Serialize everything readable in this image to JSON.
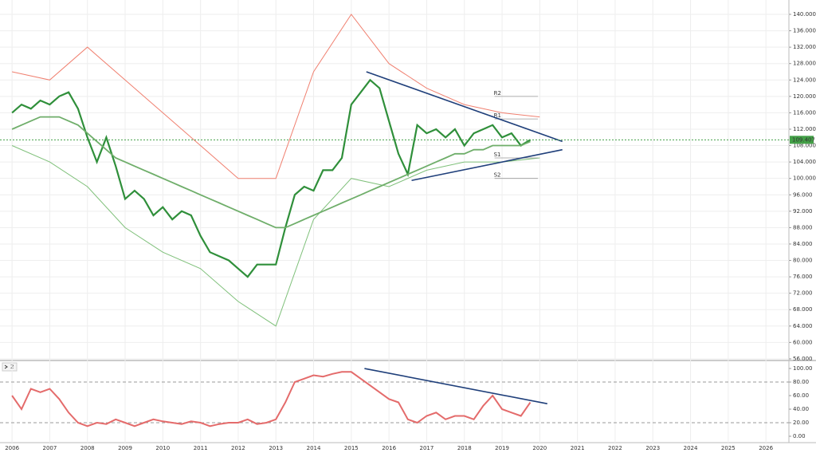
{
  "chart_data": [
    {
      "type": "line",
      "xlim": [
        2005.68,
        2026.61
      ],
      "ylim": [
        55.6,
        143.5
      ],
      "yticks": [
        {
          "value": 56,
          "label": "56.000"
        },
        {
          "value": 60,
          "label": "60.000"
        },
        {
          "value": 64,
          "label": "64.000"
        },
        {
          "value": 68,
          "label": "68.000"
        },
        {
          "value": 72,
          "label": "72.000"
        },
        {
          "value": 76,
          "label": "76.000"
        },
        {
          "value": 80,
          "label": "80.000"
        },
        {
          "value": 84,
          "label": "84.000"
        },
        {
          "value": 88,
          "label": "88.000"
        },
        {
          "value": 92,
          "label": "92.000"
        },
        {
          "value": 96,
          "label": "96.000"
        },
        {
          "value": 100,
          "label": "100.000"
        },
        {
          "value": 104,
          "label": "104.000"
        },
        {
          "value": 108,
          "label": "108.000"
        },
        {
          "value": 112,
          "label": "112.000"
        },
        {
          "value": 116,
          "label": "116.000"
        },
        {
          "value": 120,
          "label": "120.000"
        },
        {
          "value": 124,
          "label": "124.000"
        },
        {
          "value": 128,
          "label": "128.000"
        },
        {
          "value": 132,
          "label": "132.000"
        },
        {
          "value": 136,
          "label": "136.000"
        },
        {
          "value": 140,
          "label": "140.000"
        }
      ],
      "grid": true,
      "x": [
        2006,
        2006.25,
        2006.5,
        2006.75,
        2007,
        2007.25,
        2007.5,
        2007.75,
        2008,
        2008.25,
        2008.5,
        2008.75,
        2009,
        2009.25,
        2009.5,
        2009.75,
        2010,
        2010.25,
        2010.5,
        2010.75,
        2011,
        2011.25,
        2011.5,
        2011.75,
        2012,
        2012.25,
        2012.5,
        2012.75,
        2013,
        2013.25,
        2013.5,
        2013.75,
        2014,
        2014.25,
        2014.5,
        2014.75,
        2015,
        2015.25,
        2015.5,
        2015.75,
        2016,
        2016.25,
        2016.5,
        2016.75,
        2017,
        2017.25,
        2017.5,
        2017.75,
        2018,
        2018.25,
        2018.5,
        2018.75,
        2019,
        2019.25,
        2019.5,
        2019.75
      ],
      "series": [
        {
          "color": "#2f8f3a",
          "width": 2.2,
          "values": [
            116,
            118,
            117,
            119,
            118,
            120,
            121,
            117,
            110,
            104,
            110,
            103,
            95,
            97,
            95,
            91,
            93,
            90,
            92,
            91,
            86,
            82,
            81,
            80,
            78,
            76,
            79,
            79,
            79,
            88,
            96,
            98,
            97,
            102,
            102,
            105,
            118,
            121,
            124,
            122,
            114,
            106,
            101,
            113,
            111,
            112,
            110,
            112,
            108,
            111,
            112,
            113,
            110,
            111,
            108,
            109.4
          ]
        },
        {
          "color": "#6fae6a",
          "width": 1.8,
          "values": [
            112,
            113,
            114,
            115,
            115,
            115,
            114,
            113,
            111,
            109,
            107,
            105,
            104,
            103,
            102,
            101,
            100,
            99,
            98,
            97,
            96,
            95,
            94,
            93,
            92,
            91,
            90,
            89,
            88,
            88,
            89,
            90,
            91,
            92,
            93,
            94,
            95,
            96,
            97,
            98,
            99,
            100,
            101,
            102,
            103,
            104,
            105,
            106,
            106,
            107,
            107,
            108,
            108,
            108,
            108,
            109
          ]
        }
      ],
      "bands": {
        "x": [
          2006,
          2007,
          2008,
          2009,
          2010,
          2011,
          2012,
          2013,
          2014,
          2015,
          2016,
          2017,
          2018,
          2019,
          2020
        ],
        "upper": {
          "color": "#f08070",
          "values": [
            126,
            124,
            132,
            124,
            116,
            108,
            100,
            100,
            126,
            140,
            128,
            122,
            118,
            116,
            115
          ]
        },
        "lower": {
          "color": "#7fc07a",
          "values": [
            108,
            104,
            98,
            88,
            82,
            78,
            70,
            64,
            90,
            100,
            98,
            102,
            104,
            104,
            105
          ]
        }
      },
      "trendlines": [
        {
          "color": "#1f3f7a",
          "from": [
            2015.4,
            126
          ],
          "to": [
            2020.6,
            109
          ]
        },
        {
          "color": "#1f3f7a",
          "from": [
            2016.6,
            99.5
          ],
          "to": [
            2020.6,
            107
          ]
        }
      ],
      "pivots": [
        {
          "name": "R2",
          "value": 120
        },
        {
          "name": "R1",
          "value": 114.5
        },
        {
          "name": "S1",
          "value": 105
        },
        {
          "name": "S2",
          "value": 100
        }
      ],
      "last_price": 109.407,
      "last_color": "#43a047"
    },
    {
      "type": "line",
      "panel_label": "2",
      "xlim": [
        2005.68,
        2026.61
      ],
      "ylim": [
        -9.4,
        111.8
      ],
      "yticks": [
        {
          "value": 0,
          "label": "0.00"
        },
        {
          "value": 20,
          "label": "20.00"
        },
        {
          "value": 40,
          "label": "40.00"
        },
        {
          "value": 60,
          "label": "60.00"
        },
        {
          "value": 80,
          "label": "80.00"
        },
        {
          "value": 100,
          "label": "100.00"
        }
      ],
      "xticks": [
        2006,
        2007,
        2008,
        2009,
        2010,
        2011,
        2012,
        2013,
        2014,
        2015,
        2016,
        2017,
        2018,
        2019,
        2020,
        2021,
        2022,
        2023,
        2024,
        2025,
        2026
      ],
      "levels": [
        80,
        20
      ],
      "x": [
        2006,
        2006.25,
        2006.5,
        2006.75,
        2007,
        2007.25,
        2007.5,
        2007.75,
        2008,
        2008.25,
        2008.5,
        2008.75,
        2009,
        2009.25,
        2009.5,
        2009.75,
        2010,
        2010.25,
        2010.5,
        2010.75,
        2011,
        2011.25,
        2011.5,
        2011.75,
        2012,
        2012.25,
        2012.5,
        2012.75,
        2013,
        2013.25,
        2013.5,
        2013.75,
        2014,
        2014.25,
        2014.5,
        2014.75,
        2015,
        2015.25,
        2015.5,
        2015.75,
        2016,
        2016.25,
        2016.5,
        2016.75,
        2017,
        2017.25,
        2017.5,
        2017.75,
        2018,
        2018.25,
        2018.5,
        2018.75,
        2019,
        2019.25,
        2019.5,
        2019.75
      ],
      "series": [
        {
          "color": "#e46b6b",
          "width": 2,
          "values": [
            60,
            40,
            70,
            65,
            70,
            55,
            35,
            20,
            15,
            20,
            18,
            25,
            20,
            15,
            20,
            25,
            22,
            20,
            18,
            22,
            20,
            15,
            18,
            20,
            20,
            25,
            18,
            20,
            25,
            50,
            80,
            85,
            90,
            88,
            92,
            95,
            95,
            85,
            75,
            65,
            55,
            50,
            25,
            20,
            30,
            35,
            25,
            30,
            30,
            25,
            45,
            60,
            40,
            35,
            30,
            50
          ]
        }
      ],
      "trendlines": [
        {
          "color": "#1f3f7a",
          "from": [
            2015.35,
            100
          ],
          "to": [
            2020.2,
            48
          ]
        }
      ]
    }
  ]
}
